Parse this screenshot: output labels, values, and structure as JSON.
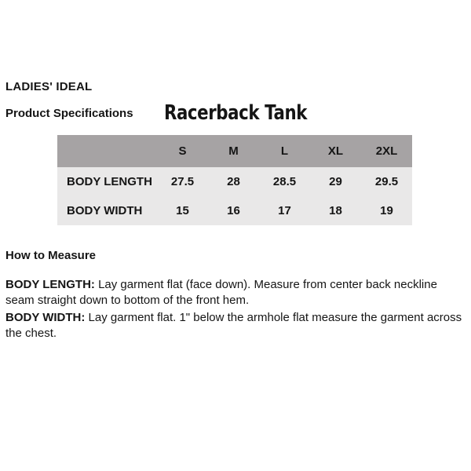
{
  "brand": "LADIES' IDEAL",
  "header": {
    "section_label": "Product Specifications",
    "product_title": "Racerback Tank"
  },
  "size_table": {
    "columns": [
      "S",
      "M",
      "L",
      "XL",
      "2XL"
    ],
    "rows": [
      {
        "label": "BODY LENGTH",
        "values": [
          "27.5",
          "28",
          "28.5",
          "29",
          "29.5"
        ]
      },
      {
        "label": "BODY WIDTH",
        "values": [
          "15",
          "16",
          "17",
          "18",
          "19"
        ]
      }
    ]
  },
  "how_to_measure": {
    "heading": "How to Measure",
    "items": [
      {
        "label": "BODY LENGTH:",
        "text": " Lay garment flat (face down). Measure from center back neckline seam straight down to bottom of the front hem."
      },
      {
        "label": "BODY WIDTH:",
        "text": " Lay garment flat. 1\" below the armhole flat measure the garment across the chest."
      }
    ]
  },
  "colors": {
    "table_header_bg": "#a6a3a4",
    "table_body_bg": "#e9e8e8",
    "text": "#151515"
  }
}
